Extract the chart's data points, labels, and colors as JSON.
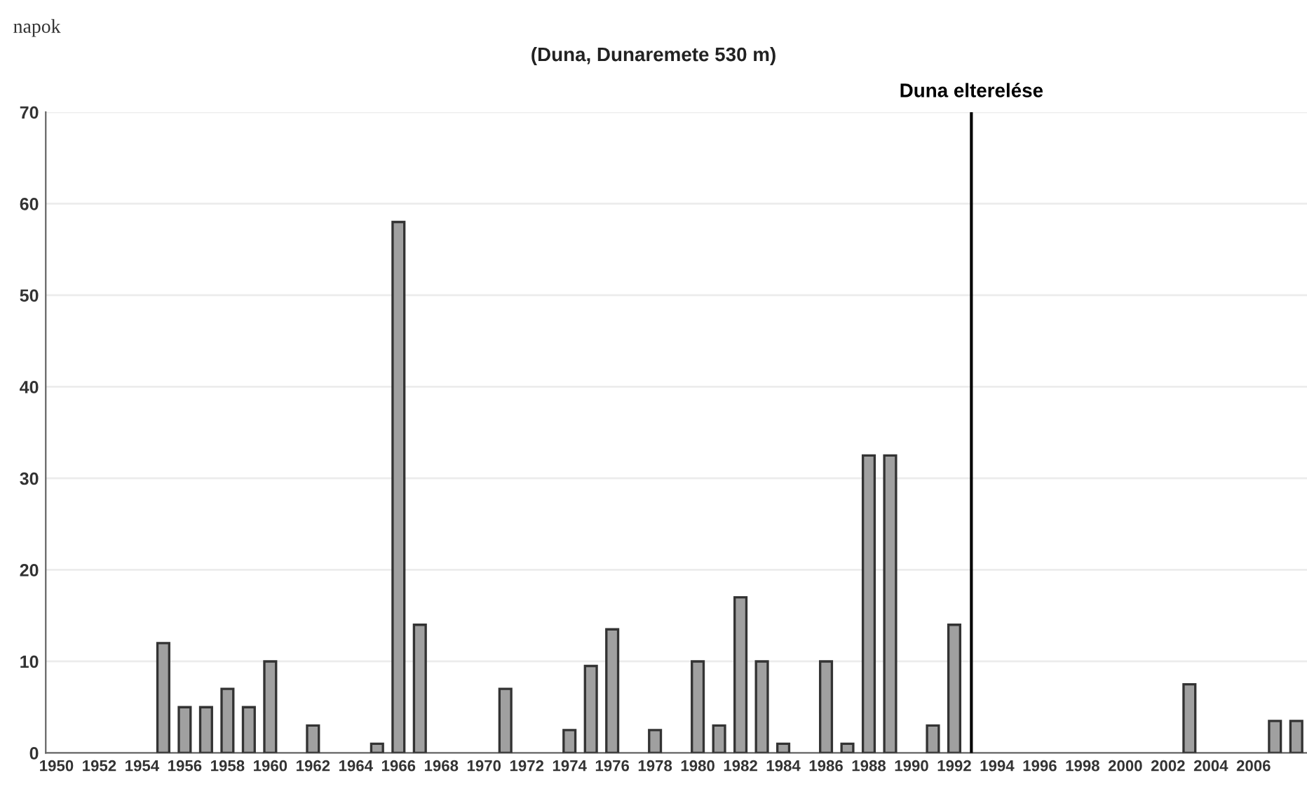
{
  "chart_data": {
    "type": "bar",
    "title": "(Duna, Dunaremete 530 m)",
    "ylabel": "napok",
    "x": [
      1955,
      1956,
      1957,
      1958,
      1959,
      1960,
      1962,
      1965,
      1966,
      1967,
      1971,
      1974,
      1975,
      1976,
      1978,
      1980,
      1981,
      1982,
      1983,
      1984,
      1986,
      1987,
      1988,
      1989,
      1991,
      1992,
      2003,
      2007,
      2008
    ],
    "values": [
      12,
      5,
      5,
      7,
      5,
      10,
      3,
      1,
      58,
      14,
      7,
      2.5,
      9.5,
      13.5,
      2.5,
      10,
      3,
      17,
      10,
      1,
      10,
      1,
      32.5,
      32.5,
      3,
      14,
      7.5,
      3.5,
      3.5
    ],
    "color": "#a0a0a0",
    "xlim": [
      1949.5,
      2008.5
    ],
    "xticks": [
      1950,
      1952,
      1954,
      1956,
      1958,
      1960,
      1962,
      1964,
      1966,
      1968,
      1970,
      1972,
      1974,
      1976,
      1978,
      1980,
      1982,
      1984,
      1986,
      1988,
      1990,
      1992,
      1994,
      1996,
      1998,
      2000,
      2002,
      2004,
      2006
    ],
    "ylim": [
      0,
      70
    ],
    "yticks": [
      0,
      10,
      20,
      30,
      40,
      50,
      60,
      70
    ],
    "ref_lines": [
      {
        "axis": "x",
        "value": 1992.8,
        "label": "Duna elterelése",
        "color": "#000000"
      }
    ],
    "grid": "y"
  }
}
